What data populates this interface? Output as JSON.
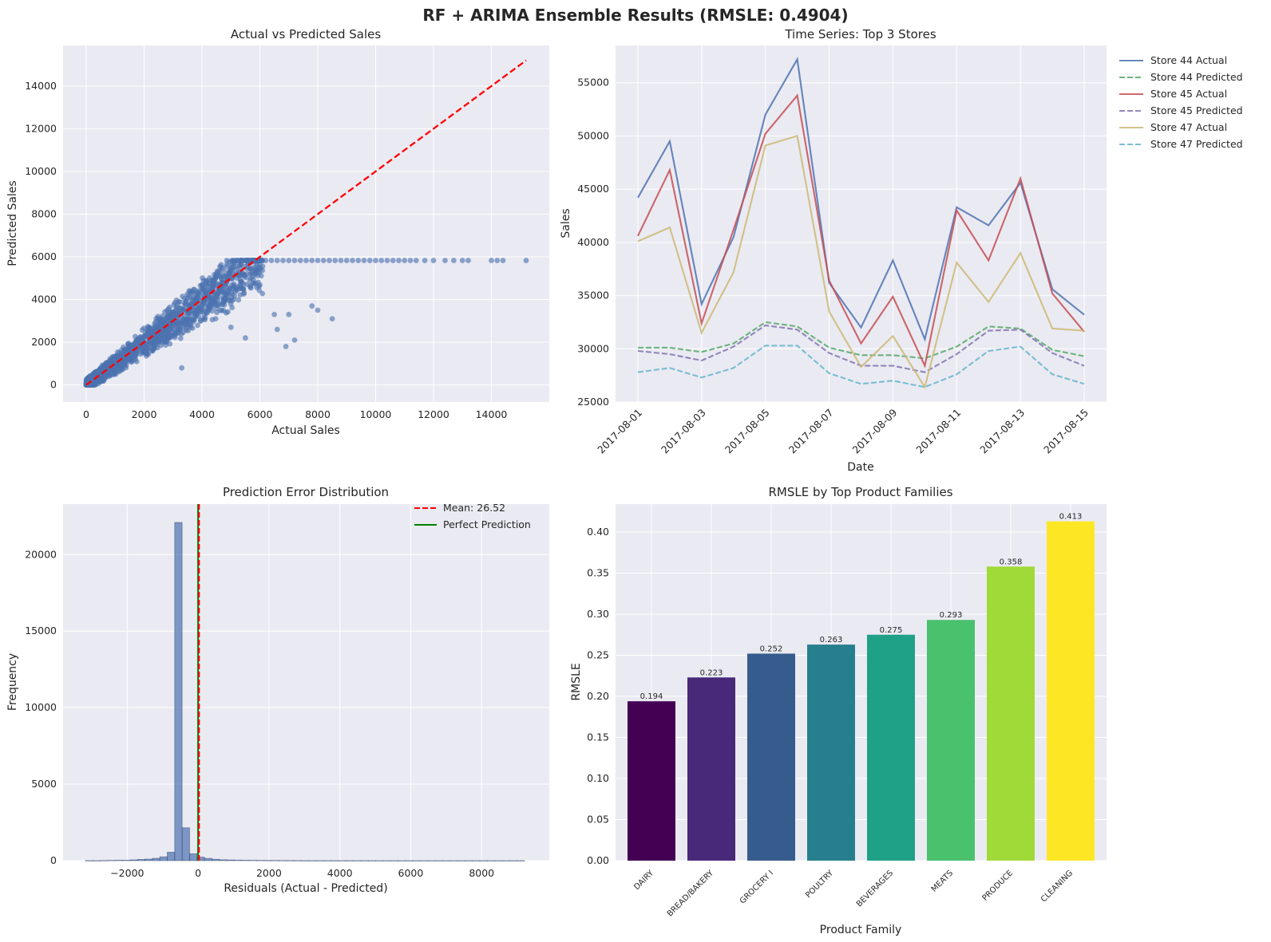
{
  "figure": {
    "suptitle": "RF + ARIMA Ensemble Results (RMSLE: 0.4904)"
  },
  "colors": {
    "background": "#ffffff",
    "axes_bg": "#eaeaf2",
    "grid": "#ffffff",
    "scatter": "#4c72b0",
    "diagonal": "#ff0000",
    "hist": "#4c72b0",
    "mean_line": "#ff0000",
    "perfect_line": "#008000"
  },
  "chart_data": [
    {
      "type": "scatter",
      "title": "Actual vs Predicted Sales",
      "xlabel": "Actual Sales",
      "ylabel": "Predicted Sales",
      "xlim": [
        -800,
        16000
      ],
      "ylim": [
        -800,
        15900
      ],
      "xticks": [
        0,
        2000,
        4000,
        6000,
        8000,
        10000,
        12000,
        14000
      ],
      "yticks": [
        0,
        2000,
        4000,
        6000,
        8000,
        10000,
        12000,
        14000
      ],
      "grid": true,
      "reference_line": {
        "style": "dashed",
        "color": "#ff0000",
        "from": [
          0,
          0
        ],
        "to": [
          15200,
          15200
        ]
      },
      "cap_value": 5830,
      "cap_points_x": [
        5200,
        5400,
        5600,
        5800,
        6000,
        6200,
        6400,
        6600,
        6800,
        7000,
        7200,
        7400,
        7600,
        7800,
        8000,
        8200,
        8400,
        8600,
        8800,
        9000,
        9200,
        9400,
        9600,
        9800,
        10000,
        10200,
        10400,
        10600,
        10800,
        11000,
        11200,
        11400,
        11700,
        12000,
        12400,
        12700,
        13000,
        13200,
        14000,
        14200,
        14400,
        15200
      ],
      "outliers": [
        [
          6600,
          2600
        ],
        [
          6500,
          3300
        ],
        [
          7000,
          3300
        ],
        [
          7200,
          2100
        ],
        [
          7800,
          3700
        ],
        [
          8000,
          3500
        ],
        [
          8500,
          3100
        ],
        [
          6900,
          1800
        ],
        [
          5000,
          2700
        ],
        [
          5500,
          2200
        ],
        [
          3300,
          800
        ],
        [
          3600,
          3100
        ],
        [
          3000,
          3200
        ]
      ],
      "band_points": 1500,
      "series": [
        {
          "name": "",
          "color": "#4c72b0"
        }
      ]
    },
    {
      "type": "line",
      "title": "Time Series: Top 3 Stores",
      "xlabel": "Date",
      "ylabel": "Sales",
      "dates": [
        "2017-08-01",
        "2017-08-02",
        "2017-08-03",
        "2017-08-04",
        "2017-08-05",
        "2017-08-06",
        "2017-08-07",
        "2017-08-08",
        "2017-08-09",
        "2017-08-10",
        "2017-08-11",
        "2017-08-12",
        "2017-08-13",
        "2017-08-14",
        "2017-08-15"
      ],
      "xtick_labels": [
        "2017-08-01",
        "2017-08-03",
        "2017-08-05",
        "2017-08-07",
        "2017-08-09",
        "2017-08-11",
        "2017-08-13",
        "2017-08-15"
      ],
      "ylim": [
        25000,
        58500
      ],
      "yticks": [
        25000,
        30000,
        35000,
        40000,
        45000,
        50000,
        55000
      ],
      "grid": true,
      "legend_placement": "outside upper right",
      "series": [
        {
          "name": "Store 44 Actual",
          "color": "#4c72b0",
          "dash": false,
          "values": [
            44200,
            49500,
            34200,
            40500,
            52000,
            57200,
            36200,
            32000,
            38300,
            30900,
            43300,
            41600,
            45600,
            35600,
            33200
          ]
        },
        {
          "name": "Store 44 Predicted",
          "color": "#55a868",
          "dash": true,
          "values": [
            30100,
            30100,
            29700,
            30500,
            32500,
            32100,
            30100,
            29400,
            29400,
            29100,
            30200,
            32100,
            31900,
            29900,
            29300
          ]
        },
        {
          "name": "Store 45 Actual",
          "color": "#c44e52",
          "dash": false,
          "values": [
            40600,
            46800,
            32400,
            41200,
            50200,
            53800,
            36400,
            30500,
            34900,
            28400,
            43000,
            38300,
            46000,
            35200,
            31600
          ]
        },
        {
          "name": "Store 45 Predicted",
          "color": "#8172b3",
          "dash": true,
          "values": [
            29800,
            29500,
            28900,
            30200,
            32200,
            31800,
            29600,
            28400,
            28400,
            27800,
            29500,
            31700,
            31800,
            29600,
            28400
          ]
        },
        {
          "name": "Store 47 Actual",
          "color": "#ccb974",
          "dash": false,
          "values": [
            40100,
            41400,
            31500,
            37200,
            49100,
            50000,
            33500,
            28300,
            31200,
            26400,
            38100,
            34400,
            39000,
            31900,
            31700
          ]
        },
        {
          "name": "Store 47 Predicted",
          "color": "#64b5cd",
          "dash": true,
          "values": [
            27800,
            28200,
            27300,
            28200,
            30300,
            30300,
            27700,
            26700,
            27000,
            26400,
            27600,
            29800,
            30200,
            27600,
            26700
          ]
        }
      ]
    },
    {
      "type": "bar",
      "subtype": "histogram",
      "title": "Prediction Error Distribution",
      "xlabel": "Residuals (Actual - Predicted)",
      "ylabel": "Frequency",
      "xlim": [
        -3810,
        9910
      ],
      "ylim": [
        0,
        23300
      ],
      "xticks": [
        -2000,
        0,
        2000,
        4000,
        6000,
        8000
      ],
      "yticks": [
        0,
        5000,
        10000,
        15000,
        20000
      ],
      "grid": true,
      "legend_placement": "top-right",
      "bins": {
        "start": -3180,
        "width": 210
      },
      "counts": [
        5,
        5,
        10,
        20,
        30,
        30,
        50,
        80,
        100,
        150,
        250,
        550,
        22100,
        2150,
        450,
        230,
        150,
        90,
        60,
        45,
        35,
        30,
        25,
        20,
        15,
        15,
        12,
        10,
        8,
        6,
        5,
        5,
        4,
        3,
        3,
        3,
        2,
        2,
        2,
        2,
        2,
        2,
        2,
        2,
        2,
        2,
        2,
        2,
        2,
        2,
        2,
        2,
        2,
        2,
        2,
        2,
        2,
        2,
        2
      ],
      "mean_line": {
        "value": 26.52,
        "label": "Mean: 26.52",
        "color": "#ff0000"
      },
      "perfect_line": {
        "value": 0,
        "label": "Perfect Prediction",
        "color": "#008000"
      }
    },
    {
      "type": "bar",
      "title": "RMSLE by Top Product Families",
      "xlabel": "Product Family",
      "ylabel": "RMSLE",
      "categories": [
        "DAIRY",
        "BREAD/BAKERY",
        "GROCERY I",
        "POULTRY",
        "BEVERAGES",
        "MEATS",
        "PRODUCE",
        "CLEANING"
      ],
      "values": [
        0.194,
        0.223,
        0.252,
        0.263,
        0.275,
        0.293,
        0.358,
        0.413
      ],
      "value_labels": [
        "0.194",
        "0.223",
        "0.252",
        "0.263",
        "0.275",
        "0.293",
        "0.358",
        "0.413"
      ],
      "colors": [
        "#440154",
        "#482878",
        "#365c8d",
        "#277f8e",
        "#1fa187",
        "#4ac16d",
        "#a0da39",
        "#fde725"
      ],
      "ylim": [
        0,
        0.434
      ],
      "yticks": [
        0.0,
        0.05,
        0.1,
        0.15,
        0.2,
        0.25,
        0.3,
        0.35,
        0.4
      ],
      "ytick_labels": [
        "0.00",
        "0.05",
        "0.10",
        "0.15",
        "0.20",
        "0.25",
        "0.30",
        "0.35",
        "0.40"
      ],
      "grid": true
    }
  ]
}
